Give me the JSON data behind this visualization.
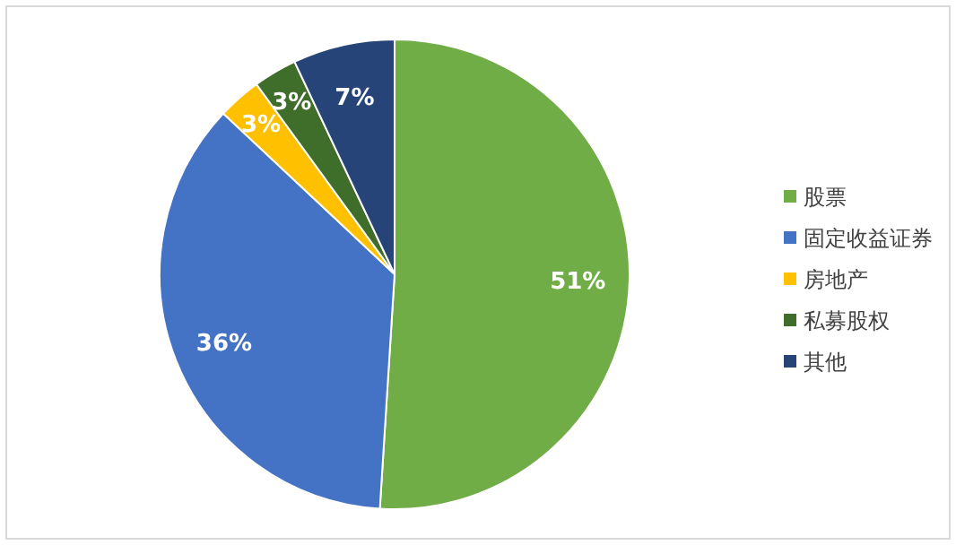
{
  "chart_data": {
    "type": "pie",
    "categories": [
      "股票",
      "固定收益证券",
      "房地产",
      "私募股权",
      "其他"
    ],
    "values": [
      51,
      36,
      3,
      3,
      7
    ],
    "colors": [
      "#70ad47",
      "#4472c4",
      "#ffc000",
      "#3f6d2a",
      "#264478"
    ],
    "value_labels": [
      "51%",
      "36%",
      "3%",
      "3%",
      "7%"
    ],
    "legend": "right"
  }
}
